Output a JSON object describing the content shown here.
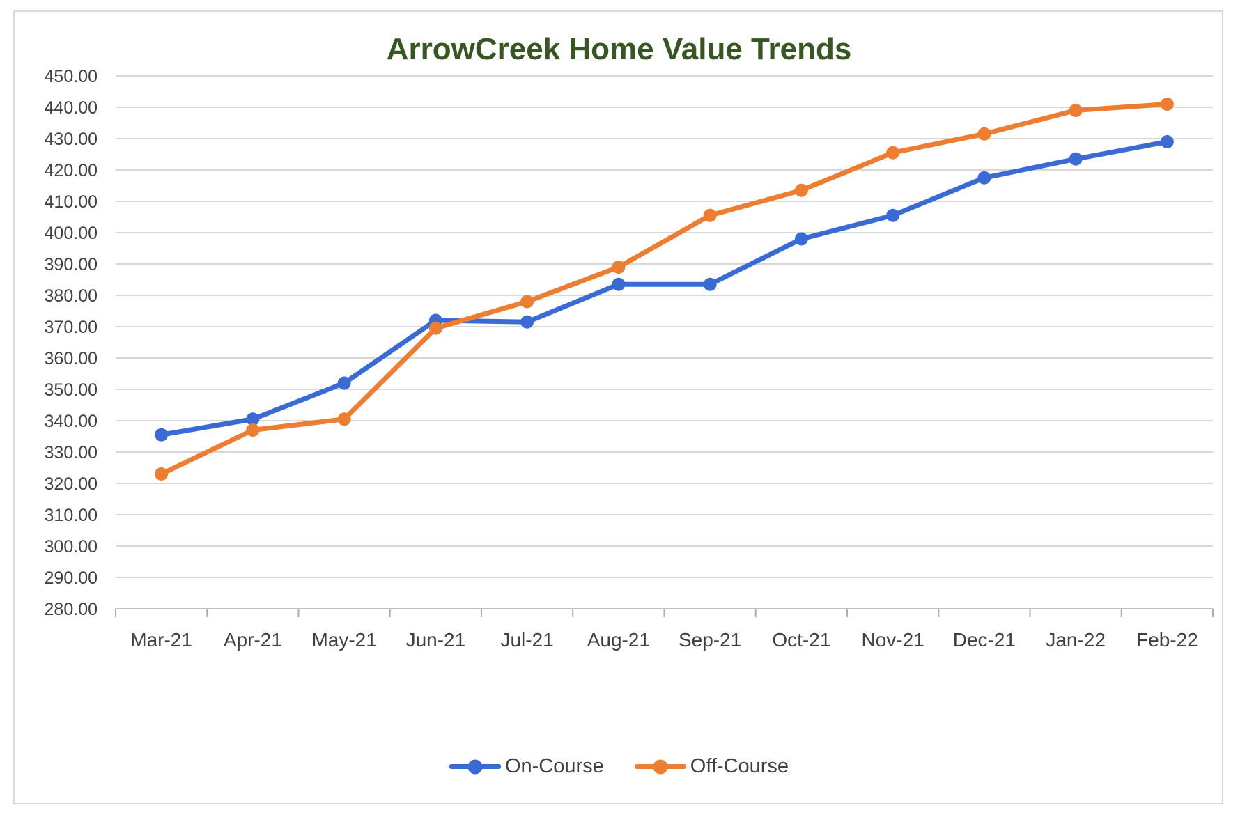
{
  "chart_data": {
    "type": "line",
    "title": "ArrowCreek Home Value Trends",
    "categories": [
      "Mar-21",
      "Apr-21",
      "May-21",
      "Jun-21",
      "Jul-21",
      "Aug-21",
      "Sep-21",
      "Oct-21",
      "Nov-21",
      "Dec-21",
      "Jan-22",
      "Feb-22"
    ],
    "series": [
      {
        "name": "On-Course",
        "color": "#3A6BD4",
        "values": [
          335.5,
          340.5,
          352.0,
          372.0,
          371.5,
          383.5,
          383.5,
          398.0,
          405.5,
          417.5,
          423.5,
          429.0
        ]
      },
      {
        "name": "Off-Course",
        "color": "#ED7D31",
        "values": [
          323.0,
          337.0,
          340.5,
          369.5,
          378.0,
          389.0,
          405.5,
          413.5,
          425.5,
          431.5,
          439.0,
          441.0
        ]
      }
    ],
    "xlabel": "",
    "ylabel": "",
    "ylim": [
      280,
      450
    ],
    "ytick_step": 10,
    "y_tick_labels": [
      "450.00",
      "440.00",
      "430.00",
      "420.00",
      "410.00",
      "400.00",
      "390.00",
      "380.00",
      "370.00",
      "360.00",
      "350.00",
      "340.00",
      "330.00",
      "320.00",
      "310.00",
      "300.00",
      "290.00",
      "280.00"
    ],
    "grid": true,
    "legend_position": "bottom"
  },
  "legend": {
    "entries": [
      {
        "label": "On-Course"
      },
      {
        "label": "Off-Course"
      }
    ]
  },
  "colors": {
    "title_text": "#375623",
    "axis_text": "#404040",
    "gridline": "#D8D8D8",
    "axis_line": "#BFBFBF",
    "tick_mark": "#ADADAD",
    "frame_border": "#D9D9D9",
    "background": "#FFFFFF"
  }
}
